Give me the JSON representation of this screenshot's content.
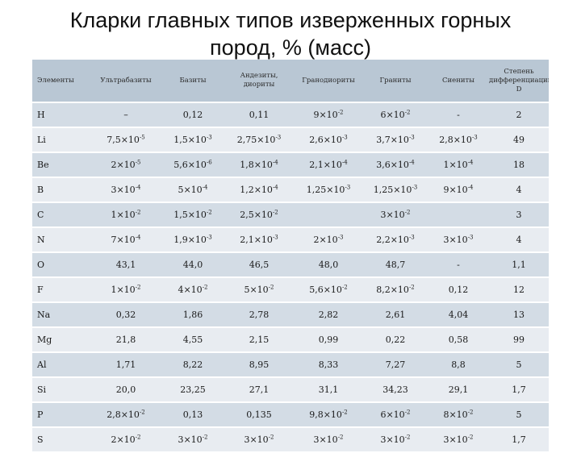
{
  "title_lines": [
    "Кларки главных типов изверженных горных",
    "пород, % (масс)"
  ],
  "headers": [
    "Элементы",
    "Ультрабазиты",
    "Базиты",
    "Андезиты, диориты",
    "Гранодиориты",
    "Граниты",
    "Сиениты",
    "Степень дифференциации D"
  ],
  "rows": [
    [
      "H",
      "–",
      "0,12",
      "0,11",
      "9×10-2",
      "6×10-2",
      "-",
      "2"
    ],
    [
      "Li",
      "7,5×10-5",
      "1,5×10-3",
      "2,75×10-3",
      "2,6×10-3",
      "3,7×10-3",
      "2,8×10-3",
      "49"
    ],
    [
      "Be",
      "2×10-5",
      "5,6×10-6",
      "1,8×10-4",
      "2,1×10-4",
      "3,6×10-4",
      "1×10-4",
      "18"
    ],
    [
      "B",
      "3×10-4",
      "5×10-4",
      "1,2×10-4",
      "1,25×10-3",
      "1,25×10-3",
      "9×10-4",
      "4"
    ],
    [
      "C",
      "1×10-2",
      "1,5×10-2",
      "2,5×10-2",
      "",
      "3×10-2",
      "",
      "3"
    ],
    [
      "N",
      "7×10-4",
      "1,9×10-3",
      "2,1×10-3",
      "2×10-3",
      "2,2×10-3",
      "3×10-3",
      "4"
    ],
    [
      "O",
      "43,1",
      "44,0",
      "46,5",
      "48,0",
      "48,7",
      "-",
      "1,1"
    ],
    [
      "F",
      "1×10-2",
      "4×10-2",
      "5×10-2",
      "5,6×10-2",
      "8,2×10-2",
      "0,12",
      "12"
    ],
    [
      "Na",
      "0,32",
      "1,86",
      "2,78",
      "2,82",
      "2,61",
      "4,04",
      "13"
    ],
    [
      "Mg",
      "21,8",
      "4,55",
      "2,15",
      "0,99",
      "0,22",
      "0,58",
      "99"
    ],
    [
      "Al",
      "1,71",
      "8,22",
      "8,95",
      "8,33",
      "7,27",
      "8,8",
      "5"
    ],
    [
      "Si",
      "20,0",
      "23,25",
      "27,1",
      "31,1",
      "34,23",
      "29,1",
      "1,7"
    ],
    [
      "P",
      "2,8×10-2",
      "0,13",
      "0,135",
      "9,8×10-2",
      "6×10-2",
      "8×10-2",
      "5"
    ],
    [
      "S",
      "2×10-2",
      "3×10-2",
      "3×10-2",
      "3×10-2",
      "3×10-2",
      "3×10-2",
      "1,7"
    ]
  ],
  "colors": {
    "header_bg": "#b9c7d4",
    "row_odd": "#d3dce5",
    "row_even": "#e8ecf1"
  }
}
